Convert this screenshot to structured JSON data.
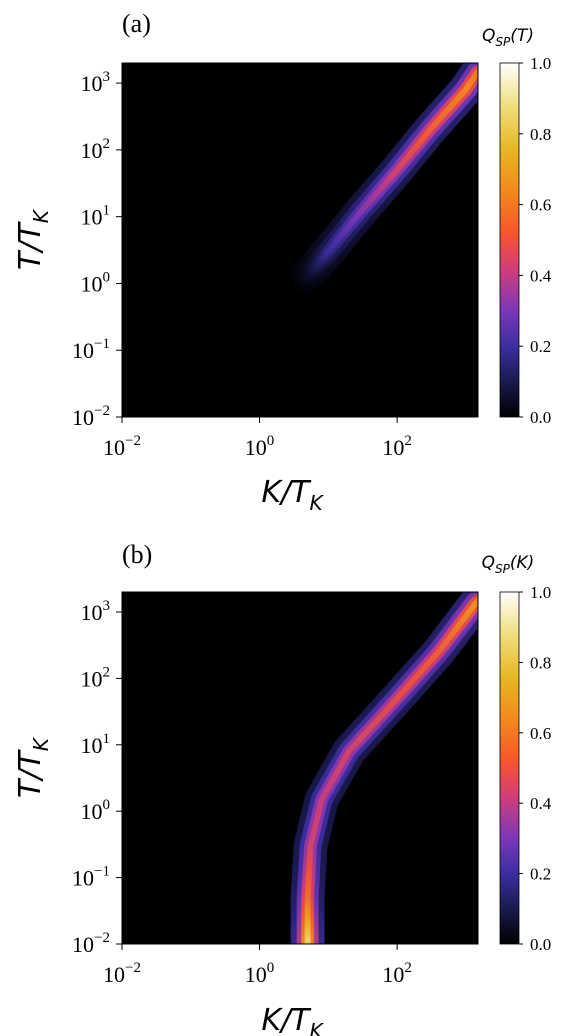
{
  "chart_data": [
    {
      "type": "heatmap",
      "panel_label": "(a)",
      "xlabel": "K/T_K",
      "ylabel": "T/T_K",
      "colorbar_label": "Q_SP(T)",
      "x_scale": "log",
      "y_scale": "log",
      "xlim": [
        0.01,
        1500
      ],
      "ylim": [
        0.01,
        2000
      ],
      "x_ticks": [
        {
          "base": "10",
          "exp": "−2",
          "value": 0.01
        },
        {
          "base": "10",
          "exp": "0",
          "value": 1
        },
        {
          "base": "10",
          "exp": "2",
          "value": 100
        }
      ],
      "y_ticks": [
        {
          "base": "10",
          "exp": "−2",
          "value": 0.01
        },
        {
          "base": "10",
          "exp": "−1",
          "value": 0.1
        },
        {
          "base": "10",
          "exp": "0",
          "value": 1
        },
        {
          "base": "10",
          "exp": "1",
          "value": 10
        },
        {
          "base": "10",
          "exp": "2",
          "value": 100
        },
        {
          "base": "10",
          "exp": "3",
          "value": 1000
        }
      ],
      "colorbar_range": [
        0.0,
        1.0
      ],
      "colorbar_ticks": [
        "0.0",
        "0.2",
        "0.4",
        "0.6",
        "0.8",
        "1.0"
      ],
      "colormap": "CMRmap-like (black-blue-purple-red-orange-yellow-white)",
      "ridge": [
        {
          "K": 5,
          "T": 1.3,
          "Q": 0.05
        },
        {
          "K": 10,
          "T": 3,
          "Q": 0.2
        },
        {
          "K": 30,
          "T": 12,
          "Q": 0.32
        },
        {
          "K": 100,
          "T": 50,
          "Q": 0.45
        },
        {
          "K": 300,
          "T": 200,
          "Q": 0.55
        },
        {
          "K": 1000,
          "T": 800,
          "Q": 0.65
        },
        {
          "K": 1500,
          "T": 1500,
          "Q": 0.6
        }
      ]
    },
    {
      "type": "heatmap",
      "panel_label": "(b)",
      "xlabel": "K/T_K",
      "ylabel": "T/T_K",
      "colorbar_label": "Q_SP(K)",
      "x_scale": "log",
      "y_scale": "log",
      "xlim": [
        0.01,
        1500
      ],
      "ylim": [
        0.01,
        2000
      ],
      "x_ticks": [
        {
          "base": "10",
          "exp": "−2",
          "value": 0.01
        },
        {
          "base": "10",
          "exp": "0",
          "value": 1
        },
        {
          "base": "10",
          "exp": "2",
          "value": 100
        }
      ],
      "y_ticks": [
        {
          "base": "10",
          "exp": "−2",
          "value": 0.01
        },
        {
          "base": "10",
          "exp": "−1",
          "value": 0.1
        },
        {
          "base": "10",
          "exp": "0",
          "value": 1
        },
        {
          "base": "10",
          "exp": "1",
          "value": 10
        },
        {
          "base": "10",
          "exp": "2",
          "value": 100
        },
        {
          "base": "10",
          "exp": "3",
          "value": 1000
        }
      ],
      "colorbar_range": [
        0.0,
        1.0
      ],
      "colorbar_ticks": [
        "0.0",
        "0.2",
        "0.4",
        "0.6",
        "0.8",
        "1.0"
      ],
      "colormap": "CMRmap-like (black-blue-purple-red-orange-yellow-white)",
      "ridge": [
        {
          "K": 5,
          "T": 0.01,
          "Q": 0.9
        },
        {
          "K": 5,
          "T": 0.05,
          "Q": 0.6
        },
        {
          "K": 5.5,
          "T": 0.3,
          "Q": 0.45
        },
        {
          "K": 8,
          "T": 1.5,
          "Q": 0.42
        },
        {
          "K": 20,
          "T": 8,
          "Q": 0.45
        },
        {
          "K": 100,
          "T": 50,
          "Q": 0.5
        },
        {
          "K": 400,
          "T": 250,
          "Q": 0.55
        },
        {
          "K": 1500,
          "T": 1500,
          "Q": 0.7
        }
      ]
    }
  ]
}
